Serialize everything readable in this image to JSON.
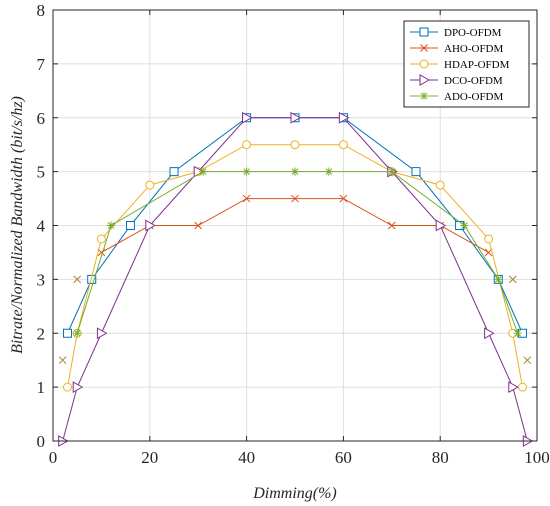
{
  "chart_data": {
    "type": "line",
    "xlabel": "Dimming(%)",
    "ylabel": "Bitrate/Normalized Bandwidth (bit/s/hz)",
    "xlim": [
      0,
      100
    ],
    "ylim": [
      0,
      8
    ],
    "xticks": [
      0,
      20,
      40,
      60,
      80,
      100
    ],
    "yticks": [
      0,
      1,
      2,
      3,
      4,
      5,
      6,
      7,
      8
    ],
    "grid": true,
    "legend_position": "top-right",
    "series": [
      {
        "name": "DPO-OFDM",
        "color": "#0072BD",
        "marker": "square",
        "x": [
          3,
          8,
          16,
          25,
          40,
          50,
          60,
          75,
          84,
          92,
          97
        ],
        "y": [
          2,
          3,
          4,
          5,
          6,
          6,
          6,
          5,
          4,
          3,
          2
        ]
      },
      {
        "name": "AHO-OFDM",
        "color": "#D95319",
        "marker": "x",
        "x": [
          10,
          20,
          30,
          40,
          50,
          60,
          70,
          80,
          90
        ],
        "y": [
          3.5,
          4,
          4,
          4.5,
          4.5,
          4.5,
          4,
          4,
          3.5
        ]
      },
      {
        "name": "HDAP-OFDM",
        "color": "#EDB120",
        "marker": "circle",
        "x": [
          3,
          5,
          10,
          20,
          30,
          40,
          50,
          60,
          70,
          80,
          90,
          95,
          97
        ],
        "y": [
          1,
          2,
          3.75,
          4.75,
          5,
          5.5,
          5.5,
          5.5,
          5,
          4.75,
          3.75,
          2,
          1
        ]
      },
      {
        "name": "DCO-OFDM",
        "color": "#7E2F8E",
        "marker": "triangle-right",
        "x": [
          2,
          5,
          10,
          20,
          30,
          40,
          50,
          60,
          70,
          80,
          90,
          95,
          98
        ],
        "y": [
          0,
          1,
          2,
          4,
          5,
          6,
          6,
          6,
          5,
          4,
          2,
          1,
          0
        ]
      },
      {
        "name": "ADO-OFDM",
        "color": "#77AC30",
        "marker": "asterisk",
        "x": [
          5,
          12,
          31,
          40,
          50,
          57,
          70,
          85,
          92,
          96
        ],
        "y": [
          2,
          4,
          5,
          5,
          5,
          5,
          5,
          4,
          3,
          2
        ]
      },
      {
        "name": "",
        "color": "#A2852E",
        "marker": "x",
        "x": [
          2,
          5,
          95,
          98
        ],
        "y": [
          1.5,
          3,
          3,
          1.5
        ]
      }
    ]
  }
}
